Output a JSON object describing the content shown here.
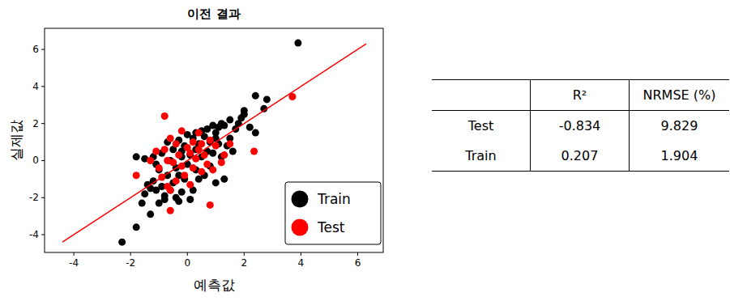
{
  "chart_data": {
    "type": "scatter",
    "title": "이전 결과",
    "x_label": "예측값",
    "y_label": "실제값",
    "xlim": [
      -5.03,
      6.9
    ],
    "ylim": [
      -4.96,
      7.14
    ],
    "xticks": [
      -4,
      -2,
      0,
      2,
      4,
      6
    ],
    "yticks": [
      -4,
      -2,
      0,
      2,
      4,
      6
    ],
    "grid": false,
    "legend": "lower right",
    "marker": "circle",
    "series": [
      {
        "name": "Train",
        "color": "#000000",
        "x": [
          3.9,
          -2.3,
          -1.8,
          2.8,
          2.7,
          2.4,
          2.4,
          2.0,
          2.0,
          1.9,
          1.8,
          1.7,
          1.5,
          1.3,
          1.2,
          1.1,
          1.0,
          1.0,
          0.9,
          0.8,
          0.7,
          0.6,
          0.5,
          0.5,
          0.4,
          0.3,
          0.3,
          0.2,
          0.2,
          0.1,
          0.0,
          0.0,
          -0.1,
          -0.1,
          -0.2,
          -0.3,
          -0.3,
          -0.4,
          -0.5,
          -0.5,
          -0.6,
          -0.7,
          -0.7,
          -0.8,
          -0.9,
          -0.9,
          -1.0,
          -1.0,
          -1.1,
          -1.2,
          -1.2,
          -1.3,
          -1.3,
          -1.5,
          -1.5,
          -1.8,
          -1.6,
          1.3,
          1.0,
          1.4,
          1.6,
          0.8,
          0.6,
          -0.2,
          -0.4,
          0.1,
          -0.8,
          1.2,
          1.5,
          2.2,
          0.9,
          -0.6,
          0.4,
          -1.4,
          0.7,
          -0.2,
          0.3,
          1.1,
          -1.1,
          -0.3
        ],
        "values": [
          6.35,
          -4.4,
          -3.6,
          3.3,
          2.8,
          3.5,
          1.5,
          2.7,
          2.5,
          2.3,
          2.0,
          1.7,
          2.2,
          1.9,
          2.0,
          1.8,
          1.5,
          1.2,
          1.9,
          1.0,
          0.5,
          1.3,
          1.6,
          0.2,
          0.9,
          -0.5,
          0.6,
          1.2,
          -1.6,
          0.3,
          1.4,
          -0.2,
          0.8,
          -1.0,
          0.2,
          -2.2,
          1.1,
          -0.4,
          0.6,
          -1.2,
          0.0,
          -0.8,
          1.0,
          -1.9,
          0.4,
          -1.4,
          -2.3,
          -0.5,
          -1.6,
          0.2,
          -1.1,
          -2.9,
          -1.5,
          0.1,
          -1.8,
          0.2,
          -2.3,
          -1.0,
          -1.2,
          0.8,
          0.5,
          -0.3,
          -0.8,
          -1.7,
          -2.0,
          -2.1,
          -2.1,
          0.2,
          1.2,
          1.8,
          0.4,
          -1.6,
          -1.0,
          -1.3,
          1.7,
          0.5,
          1.5,
          0.9,
          -0.2,
          -0.8
        ]
      },
      {
        "name": "Test",
        "color": "#ff0000",
        "x": [
          3.7,
          2.35,
          0.8,
          -0.8,
          -1.8,
          -0.6,
          -0.7,
          -0.6,
          0.4,
          -1.3,
          -0.6,
          0.2,
          -0.4,
          0.1,
          0.3,
          -0.2,
          0.5,
          -0.1,
          0.0,
          0.6,
          1.3,
          1.2,
          1.0,
          -0.9,
          -0.3,
          0.7,
          -0.5,
          0.2,
          -0.8,
          0.9,
          -0.4,
          0.4,
          1.5,
          -1.1,
          0.1,
          -0.2,
          0.8,
          -0.7,
          0.5,
          -1.0
        ],
        "values": [
          3.45,
          0.5,
          -2.4,
          2.4,
          -0.8,
          -2.7,
          -1.4,
          -1.6,
          1.5,
          0.0,
          1.2,
          1.0,
          0.9,
          0.4,
          0.1,
          -0.3,
          -0.6,
          -0.8,
          0.7,
          0.3,
          0.3,
          -0.1,
          0.8,
          -0.9,
          0.3,
          -0.2,
          -0.1,
          -0.4,
          0.6,
          -0.5,
          -1.1,
          0.6,
          0.9,
          0.5,
          -1.3,
          1.6,
          1.1,
          0.0,
          0.9,
          -0.4
        ]
      }
    ],
    "reference_line": {
      "x": [
        -4.4,
        6.3
      ],
      "values": [
        -4.4,
        6.3
      ],
      "color": "#ff0000"
    }
  },
  "table": {
    "columns": [
      "R²",
      "NRMSE (%)"
    ],
    "rows": [
      {
        "label": "Test",
        "values": [
          -0.834,
          9.829
        ]
      },
      {
        "label": "Train",
        "values": [
          0.207,
          1.904
        ]
      }
    ]
  }
}
